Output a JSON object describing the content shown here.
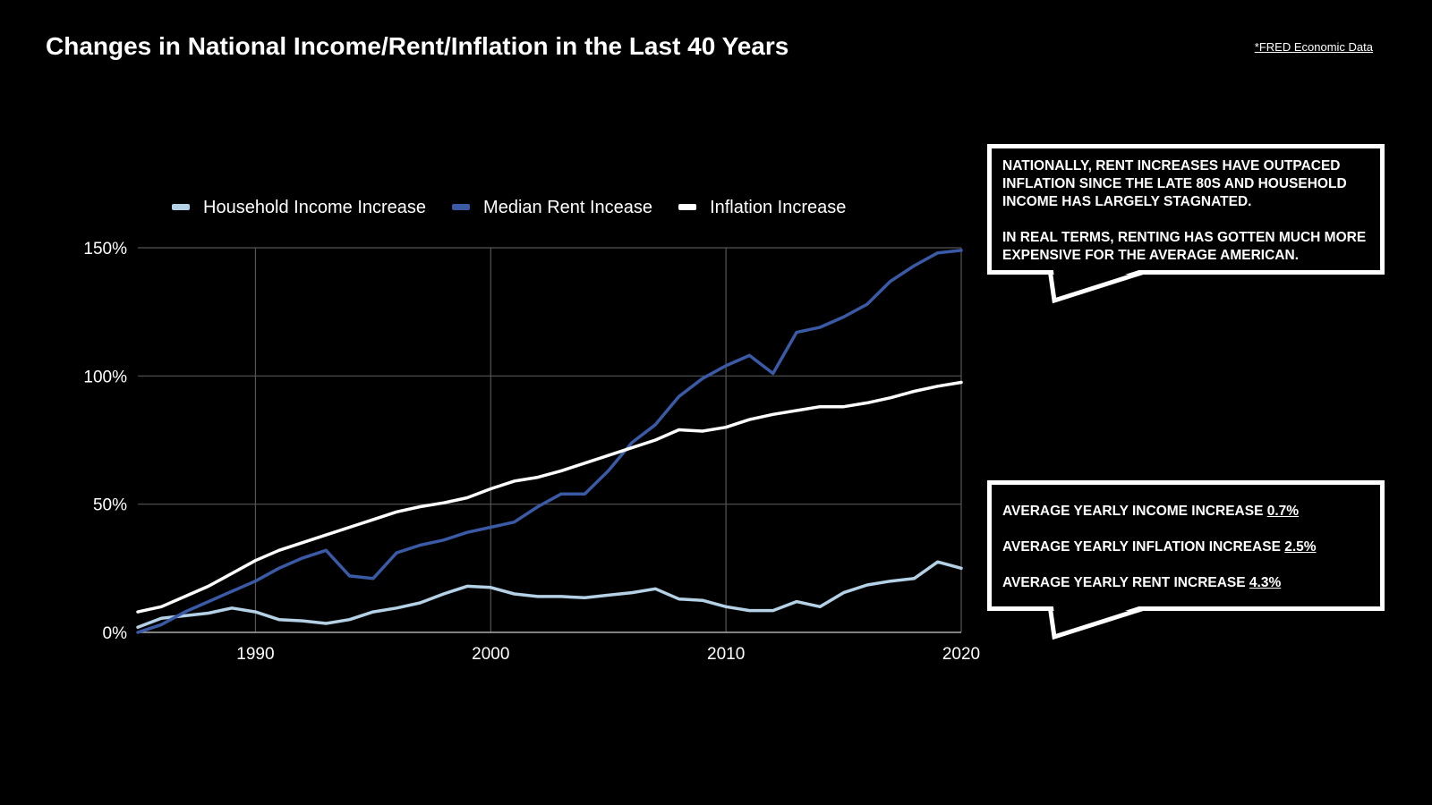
{
  "header": {
    "title": "Changes in National Income/Rent/Inflation in the Last 40 Years",
    "source": "*FRED Economic Data"
  },
  "colors": {
    "background": "#000000",
    "household_income": "#b5d1e6",
    "median_rent": "#3a5aa6",
    "inflation": "#ffffff",
    "grid": "#555555"
  },
  "chart_data": {
    "type": "line",
    "title": "",
    "xlabel": "",
    "ylabel": "",
    "x": [
      1985,
      1986,
      1987,
      1988,
      1989,
      1990,
      1991,
      1992,
      1993,
      1994,
      1995,
      1996,
      1997,
      1998,
      1999,
      2000,
      2001,
      2002,
      2003,
      2004,
      2005,
      2006,
      2007,
      2008,
      2009,
      2010,
      2011,
      2012,
      2013,
      2014,
      2015,
      2016,
      2017,
      2018,
      2019,
      2020
    ],
    "xlim": [
      1985,
      2020
    ],
    "ylim": [
      0,
      150
    ],
    "x_ticks": [
      {
        "value": 1990,
        "label": "1990"
      },
      {
        "value": 2000,
        "label": "2000"
      },
      {
        "value": 2010,
        "label": "2010"
      },
      {
        "value": 2020,
        "label": "2020"
      }
    ],
    "y_ticks": [
      {
        "value": 0,
        "label": "0%"
      },
      {
        "value": 50,
        "label": "50%"
      },
      {
        "value": 100,
        "label": "100%"
      },
      {
        "value": 150,
        "label": "150%"
      }
    ],
    "grid": true,
    "legend_position": "top",
    "series": [
      {
        "name": "Household Income Increase",
        "color": "#b5d1e6",
        "values": [
          2,
          5.5,
          6.5,
          7.5,
          9.5,
          8,
          5,
          4.5,
          3.5,
          5,
          8,
          9.5,
          11.5,
          15,
          18,
          17.5,
          15,
          14,
          14,
          13.5,
          14.5,
          15.5,
          17,
          13,
          12.5,
          10,
          8.5,
          8.5,
          12,
          10,
          15.5,
          18.5,
          20,
          21,
          27.5,
          25
        ]
      },
      {
        "name": "Median Rent Incease",
        "color": "#3a5aa6",
        "values": [
          0,
          3,
          8,
          12,
          16,
          20,
          25,
          29,
          32,
          22,
          21,
          31,
          34,
          36,
          39,
          41,
          43,
          49,
          54,
          54,
          63,
          74,
          81,
          92,
          99,
          104,
          108,
          101,
          117,
          119,
          123,
          128,
          137,
          143,
          148,
          149
        ]
      },
      {
        "name": "Inflation Increase",
        "color": "#ffffff",
        "values": [
          8,
          10,
          14,
          18,
          23,
          28,
          32,
          35,
          38,
          41,
          44,
          47,
          49,
          50.5,
          52.5,
          56,
          59,
          60.5,
          63,
          66,
          69,
          72,
          75,
          79,
          78.5,
          80,
          83,
          85,
          86.5,
          88,
          88,
          89.5,
          91.5,
          94,
          96,
          97.5
        ]
      }
    ]
  },
  "callouts": {
    "top": {
      "para1": "Nationally, rent increases have outpaced inflation since the late 80s and household income has largely stagnated.",
      "para2": "In real terms, renting has gotten much more expensive for the average American."
    },
    "bottom": {
      "income_label": "Average yearly income increase",
      "income_value": "0.7%",
      "inflation_label": "Average yearly inflation increase",
      "inflation_value": "2.5%",
      "rent_label": "Average yearly rent increase",
      "rent_value": "4.3%"
    }
  }
}
